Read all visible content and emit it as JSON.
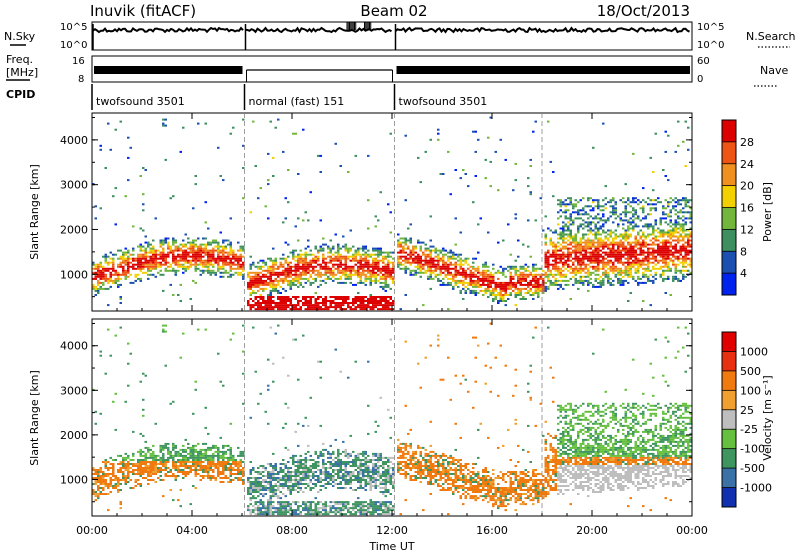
{
  "header": {
    "station": "Inuvik (fitACF)",
    "beam": "Beam 02",
    "date": "18/Oct/2013"
  },
  "status": {
    "nsky_label": "N.Sky",
    "nsearch_label": "N.Search",
    "freq_label_line1": "Freq.",
    "freq_label_line2": "[MHz]",
    "nave_label": "Nave",
    "cpid_label": "CPID",
    "left_ticks_top": [
      "10^5",
      "10^0"
    ],
    "right_ticks_top": [
      "10^5",
      "10^0"
    ],
    "freq_ticks": [
      "16",
      "8"
    ],
    "nave_ticks": [
      "60",
      "0"
    ],
    "cpid_segments": [
      {
        "label": "twofsound 3501",
        "start": 0,
        "end": 6.1
      },
      {
        "label": "normal (fast) 151",
        "start": 6.1,
        "end": 12.1
      },
      {
        "label": "twofsound 3501",
        "start": 12.1,
        "end": 24
      }
    ]
  },
  "chart_data": [
    {
      "type": "heatmap",
      "name": "power",
      "ylabel": "Slant Range [km]",
      "x_range_hours": [
        0,
        24
      ],
      "ylim": [
        180,
        4600
      ],
      "yticks": [
        1000,
        2000,
        3000,
        4000
      ],
      "colorbar": {
        "label": "Power [dB]",
        "ticks": [
          "4",
          "8",
          "12",
          "16",
          "20",
          "24",
          "28"
        ],
        "colors": [
          "#0022ee",
          "#1b4fb0",
          "#3d8f5f",
          "#73b63c",
          "#f3d000",
          "#f09020",
          "#ee5515",
          "#dd0000"
        ]
      }
    },
    {
      "type": "heatmap",
      "name": "velocity",
      "ylabel": "Slant Range [km]",
      "x_range_hours": [
        0,
        24
      ],
      "ylim": [
        180,
        4600
      ],
      "yticks": [
        1000,
        2000,
        3000,
        4000
      ],
      "colorbar": {
        "label": "Velocity [m s^-1]",
        "ticks": [
          "1000",
          "500",
          "100",
          "25",
          "-25",
          "-100",
          "-500",
          "-1000"
        ],
        "colors": [
          "#1030b0",
          "#3a72a8",
          "#3f9560",
          "#66c040",
          "#bebebe",
          "#f0a030",
          "#f07a10",
          "#e83010",
          "#e00000"
        ]
      }
    }
  ],
  "xaxis": {
    "label": "Time UT",
    "ticks": [
      "00:00",
      "04:00",
      "08:00",
      "12:00",
      "16:00",
      "20:00",
      "00:00"
    ]
  }
}
